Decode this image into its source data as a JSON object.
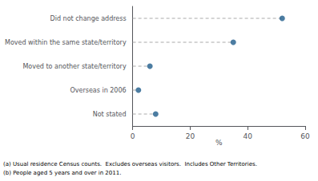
{
  "chart_data": {
    "type": "dot",
    "orientation": "horizontal",
    "categories": [
      "Not stated",
      "Overseas in 2006",
      "Moved to another state/territory",
      "Moved within the same state/territory",
      "Did not change address"
    ],
    "values": [
      8,
      2,
      6,
      35,
      52
    ],
    "color": "#1F5C8B",
    "line_style": "dashed",
    "xlabel": "%",
    "xlim": [
      0,
      60
    ],
    "xticks": [
      0,
      20,
      40,
      60
    ],
    "grid": false,
    "annotations": [
      "(a) Usual residence Census counts.  Excludes overseas visitors.  Includes Other Territories.",
      "(b) People aged 5 years and over in 2011."
    ]
  }
}
